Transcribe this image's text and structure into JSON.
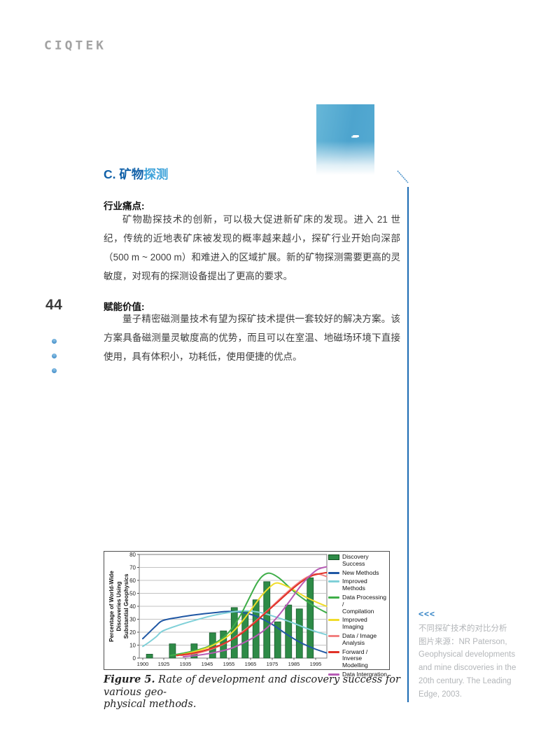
{
  "page": {
    "number": "44"
  },
  "logo": {
    "text": "CIQTEK"
  },
  "section": {
    "heading": {
      "part1": "C. 矿物",
      "part2": "探测"
    },
    "pain_points": {
      "label": "行业痛点:",
      "body": "矿物勘探技术的创新，可以极大促进新矿床的发现。进入 21 世纪，传统的近地表矿床被发现的概率越来越小，探矿行业开始向深部（500 m ~ 2000 m）和难进入的区域扩展。新的矿物探测需要更高的灵敏度，对现有的探测设备提出了更高的要求。"
    },
    "value": {
      "label": "赋能价值:",
      "body": "量子精密磁测量技术有望为探矿技术提供一套较好的解决方案。该方案具备磁测量灵敏度高的优势，而且可以在室温、地磁场环境下直接使用，具有体积小，功耗低，使用便捷的优点。"
    }
  },
  "figure": {
    "caption_label": "Figure 5.",
    "caption_line1": " Rate of development and discovery success for various geo-",
    "caption_line2": "physical methods."
  },
  "sidenote": {
    "marker": "<<<",
    "lines": [
      "不同探矿技术的对比分析",
      "图片来源：NR Paterson,",
      "Geophysical developments",
      "and mine discoveries in the",
      "20th century. The Leading",
      "Edge, 2003."
    ]
  },
  "colors": {
    "heading_dark_blue": "#1060a8",
    "heading_light_blue": "#3fa3da",
    "vertical_line_blue": "#1b6ab3",
    "sidenote_gray": "#b3b6b9"
  },
  "chart_data": {
    "type": "bar+line",
    "title": "",
    "xlabel": "",
    "ylabel_lines": [
      "Percentage of World-Wide",
      "Discoveries Using",
      "Substantial Geophysics"
    ],
    "ylim": [
      0,
      80
    ],
    "yticks": [
      0,
      10,
      20,
      30,
      40,
      50,
      60,
      70,
      80
    ],
    "xticks": [
      1900,
      1925,
      1935,
      1945,
      1955,
      1965,
      1975,
      1985,
      1995
    ],
    "grid": true,
    "legend_position": "right",
    "bars": {
      "name": "Discovery Success",
      "color": "#2e8b47",
      "x": [
        1908,
        1929,
        1939,
        1947.5,
        1952.5,
        1957.5,
        1962.5,
        1967.5,
        1972.5,
        1977.5,
        1982.5,
        1987.5,
        1992.5
      ],
      "values": [
        3,
        11,
        11,
        19.5,
        21,
        39,
        36.5,
        45,
        59,
        28,
        41,
        38,
        62
      ]
    },
    "series": [
      {
        "name": "New Methods",
        "color": "#1f57a4",
        "points": [
          [
            1900,
            15
          ],
          [
            1908,
            20
          ],
          [
            1916,
            25
          ],
          [
            1924,
            29
          ],
          [
            1932,
            31.5
          ],
          [
            1940,
            33.5
          ],
          [
            1948,
            35
          ],
          [
            1955,
            36
          ],
          [
            1962,
            35
          ],
          [
            1968,
            32
          ],
          [
            1975,
            26
          ],
          [
            1982,
            18
          ],
          [
            1988,
            12
          ],
          [
            1994,
            7.5
          ],
          [
            2000,
            4
          ]
        ]
      },
      {
        "name": "Improved Methods",
        "color": "#7fd0d8",
        "points": [
          [
            1900,
            9
          ],
          [
            1908,
            12.5
          ],
          [
            1916,
            16.5
          ],
          [
            1924,
            21
          ],
          [
            1932,
            25.5
          ],
          [
            1940,
            29.5
          ],
          [
            1948,
            33
          ],
          [
            1956,
            35.5
          ],
          [
            1963,
            36.5
          ],
          [
            1970,
            35
          ],
          [
            1977,
            31.5
          ],
          [
            1984,
            27.5
          ],
          [
            1990,
            23.5
          ],
          [
            1995,
            20.5
          ],
          [
            2000,
            18
          ]
        ]
      },
      {
        "name": "Data Processing / Compilation",
        "color": "#3fae49",
        "points": [
          [
            1928,
            2
          ],
          [
            1936,
            4.5
          ],
          [
            1944,
            8
          ],
          [
            1950,
            13
          ],
          [
            1955,
            20
          ],
          [
            1960,
            32
          ],
          [
            1964,
            45
          ],
          [
            1968,
            58
          ],
          [
            1971,
            64
          ],
          [
            1974,
            65.5
          ],
          [
            1978,
            62
          ],
          [
            1982,
            56
          ],
          [
            1986,
            50
          ],
          [
            1990,
            45
          ],
          [
            1995,
            39.5
          ],
          [
            2000,
            35
          ]
        ]
      },
      {
        "name": "Improved Imaging",
        "color": "#f0dc2a",
        "points": [
          [
            1931,
            2
          ],
          [
            1938,
            4.5
          ],
          [
            1945,
            8
          ],
          [
            1951,
            13
          ],
          [
            1956,
            19
          ],
          [
            1961,
            28
          ],
          [
            1966,
            39
          ],
          [
            1970,
            48
          ],
          [
            1974,
            55
          ],
          [
            1977,
            58
          ],
          [
            1981,
            56
          ],
          [
            1985,
            52.5
          ],
          [
            1990,
            47.5
          ],
          [
            1995,
            43.5
          ],
          [
            2000,
            40
          ]
        ]
      },
      {
        "name": "Data / Image Analysis",
        "color": "#f28080",
        "points": [
          [
            1933,
            2
          ],
          [
            1941,
            4
          ],
          [
            1948,
            7.5
          ],
          [
            1955,
            13
          ],
          [
            1961,
            20
          ],
          [
            1967,
            28
          ],
          [
            1973,
            37
          ],
          [
            1979,
            46.5
          ],
          [
            1984,
            54
          ],
          [
            1989,
            60.5
          ],
          [
            1993,
            64
          ],
          [
            1996,
            65
          ],
          [
            2000,
            63
          ]
        ]
      },
      {
        "name": "Forward / Inverse Modelling",
        "color": "#e03127",
        "points": [
          [
            1931,
            2
          ],
          [
            1939,
            4
          ],
          [
            1946,
            7
          ],
          [
            1953,
            11.5
          ],
          [
            1960,
            18
          ],
          [
            1966,
            26
          ],
          [
            1972,
            35
          ],
          [
            1978,
            44
          ],
          [
            1984,
            53
          ],
          [
            1989,
            59.5
          ],
          [
            1994,
            64
          ],
          [
            2000,
            66
          ]
        ]
      },
      {
        "name": "Data Intergration",
        "color": "#b75bb5",
        "points": [
          [
            1934,
            1
          ],
          [
            1942,
            2.5
          ],
          [
            1949,
            4.5
          ],
          [
            1956,
            7.5
          ],
          [
            1962,
            12
          ],
          [
            1968,
            17.5
          ],
          [
            1973,
            24
          ],
          [
            1978,
            33
          ],
          [
            1983,
            44
          ],
          [
            1988,
            55.5
          ],
          [
            1992,
            63
          ],
          [
            1996,
            68.5
          ],
          [
            2000,
            70.5
          ]
        ]
      }
    ],
    "legend": [
      {
        "swatch": "box",
        "color": "#2e8b47",
        "lines": [
          "Discovery",
          "Success"
        ]
      },
      {
        "swatch": "line",
        "color": "#1f57a4",
        "lines": [
          "New Methods"
        ]
      },
      {
        "swatch": "line",
        "color": "#7fd0d8",
        "lines": [
          "Improved",
          "Methods"
        ]
      },
      {
        "swatch": "line",
        "color": "#3fae49",
        "lines": [
          "Data Processing /",
          "Compilation"
        ]
      },
      {
        "swatch": "line",
        "color": "#f0dc2a",
        "lines": [
          "Improved Imaging"
        ]
      },
      {
        "swatch": "line",
        "color": "#f28080",
        "lines": [
          "Data / Image",
          "Analysis"
        ]
      },
      {
        "swatch": "line",
        "color": "#e03127",
        "lines": [
          "Forward / Inverse",
          "Modelling"
        ]
      },
      {
        "swatch": "line",
        "color": "#b75bb5",
        "lines": [
          "Data Intergration"
        ]
      }
    ]
  }
}
